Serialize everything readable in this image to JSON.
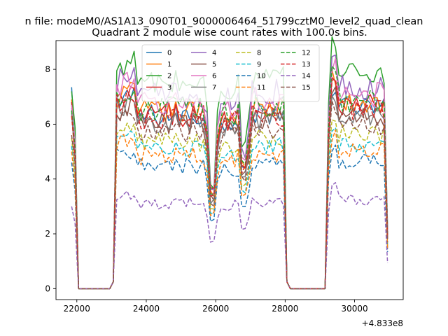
{
  "chart_data": {
    "type": "line",
    "suptitle": "n file: modeM0/AS1A13_090T01_9000006464_51799cztM0_level2_quad_clean",
    "title": "Quadrant 2 module wise count rates with 100.0s bins.",
    "xlabel": "",
    "ylabel": "",
    "x_offset_label": "+4.833e8",
    "xlim": [
      21400,
      31400
    ],
    "ylim": [
      -0.4,
      9.05
    ],
    "xticks": [
      22000,
      24000,
      26000,
      28000,
      30000
    ],
    "xtick_labels": [
      "22000",
      "24000",
      "26000",
      "28000",
      "30000"
    ],
    "yticks": [
      0,
      2,
      4,
      6,
      8
    ],
    "ytick_labels": [
      "0",
      "2",
      "4",
      "6",
      "8"
    ],
    "grid": false,
    "legend_position": "top-center",
    "legend_columns": 4,
    "x_sampling": {
      "start": 21850,
      "step": 100,
      "count": 92
    },
    "series": [
      {
        "name": "0",
        "color": "#1f77b4",
        "dash": "solid",
        "level": 6.3,
        "start": 7.35,
        "dip": 3.6
      },
      {
        "name": "1",
        "color": "#ff7f0e",
        "dash": "solid",
        "level": 6.45,
        "start": 6.9,
        "dip": 3.5
      },
      {
        "name": "2",
        "color": "#2ca02c",
        "dash": "solid",
        "level": 7.5,
        "start": 7.2,
        "dip": 3.7
      },
      {
        "name": "3",
        "color": "#d62728",
        "dash": "solid",
        "level": 6.35,
        "start": 6.8,
        "dip": 3.6
      },
      {
        "name": "4",
        "color": "#9467bd",
        "dash": "solid",
        "level": 7.05,
        "start": 6.6,
        "dip": 3.5
      },
      {
        "name": "5",
        "color": "#8c564b",
        "dash": "solid",
        "level": 6.0,
        "start": 6.5,
        "dip": 3.3
      },
      {
        "name": "6",
        "color": "#e377c2",
        "dash": "solid",
        "level": 6.75,
        "start": 6.7,
        "dip": 3.5
      },
      {
        "name": "7",
        "color": "#7f7f7f",
        "dash": "solid",
        "level": 6.05,
        "start": 6.4,
        "dip": 3.2
      },
      {
        "name": "8",
        "color": "#bcbd22",
        "dash": "dashed",
        "level": 5.35,
        "start": 5.5,
        "dip": 3.0
      },
      {
        "name": "9",
        "color": "#17becf",
        "dash": "dashed",
        "level": 5.05,
        "start": 5.2,
        "dip": 2.8
      },
      {
        "name": "10",
        "color": "#1f77b4",
        "dash": "dashed",
        "level": 4.45,
        "start": 4.6,
        "dip": 2.5
      },
      {
        "name": "11",
        "color": "#ff7f0e",
        "dash": "dashed",
        "level": 4.85,
        "start": 5.0,
        "dip": 2.7
      },
      {
        "name": "12",
        "color": "#2ca02c",
        "dash": "dashed",
        "level": 6.55,
        "start": 6.5,
        "dip": 3.5
      },
      {
        "name": "13",
        "color": "#d62728",
        "dash": "dashed",
        "level": 6.2,
        "start": 6.3,
        "dip": 3.4
      },
      {
        "name": "14",
        "color": "#9467bd",
        "dash": "dashed",
        "level": 3.1,
        "start": 3.0,
        "dip": 1.7
      },
      {
        "name": "15",
        "color": "#8c564b",
        "dash": "dashed",
        "level": 5.7,
        "start": 5.6,
        "dip": 3.1
      }
    ],
    "segments": [
      {
        "from": 21850,
        "to": 21950,
        "state": "on"
      },
      {
        "from": 22050,
        "to": 23000,
        "state": "off"
      },
      {
        "from": 23200,
        "to": 25800,
        "state": "on"
      },
      {
        "from": 25900,
        "to": 26000,
        "state": "dip"
      },
      {
        "from": 26100,
        "to": 26750,
        "state": "on"
      },
      {
        "from": 26850,
        "to": 26950,
        "state": "dip"
      },
      {
        "from": 27050,
        "to": 28050,
        "state": "on"
      },
      {
        "from": 28150,
        "to": 29250,
        "state": "off"
      },
      {
        "from": 29350,
        "to": 30950,
        "state": "on"
      }
    ]
  }
}
